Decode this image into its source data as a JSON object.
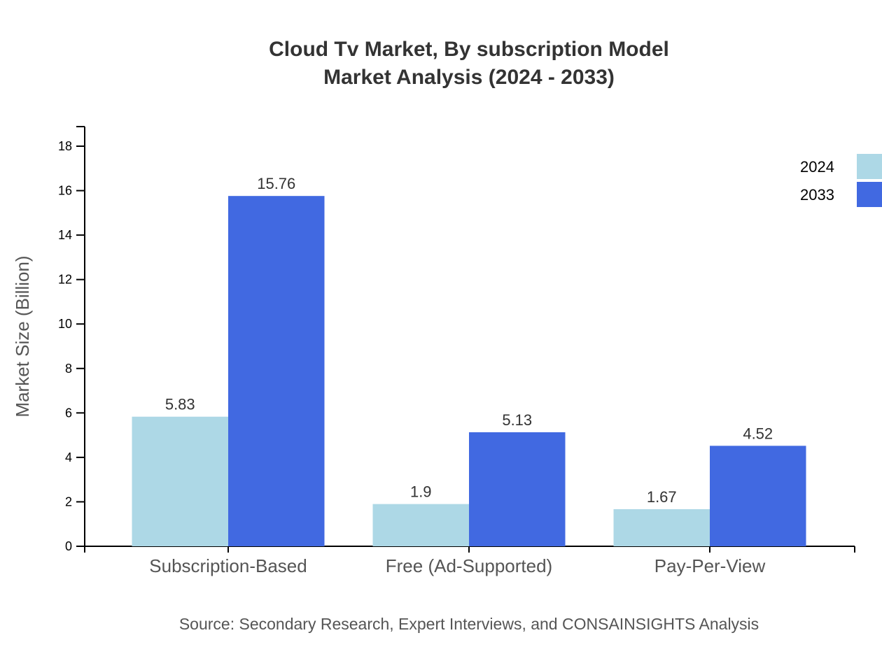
{
  "chart_data": {
    "type": "bar",
    "title": "Cloud Tv Market, By subscription Model",
    "subtitle": "Market Analysis (2024 - 2033)",
    "xlabel": "",
    "ylabel": "Market Size (Billion)",
    "ylim": [
      0,
      19
    ],
    "yticks": [
      0,
      2,
      4,
      6,
      8,
      10,
      12,
      14,
      16,
      18
    ],
    "grid": false,
    "legend_position": "top-right",
    "categories": [
      "Subscription-Based",
      "Free (Ad-Supported)",
      "Pay-Per-View"
    ],
    "series": [
      {
        "name": "2024",
        "color": "#add8e6",
        "values": [
          5.83,
          1.9,
          1.67
        ],
        "labels": [
          "5.83",
          "1.9",
          "1.67"
        ]
      },
      {
        "name": "2033",
        "color": "#4169e1",
        "values": [
          15.76,
          5.13,
          4.52
        ],
        "labels": [
          "15.76",
          "5.13",
          "4.52"
        ]
      }
    ],
    "source": "Source: Secondary Research, Expert Interviews, and CONSAINSIGHTS Analysis"
  }
}
